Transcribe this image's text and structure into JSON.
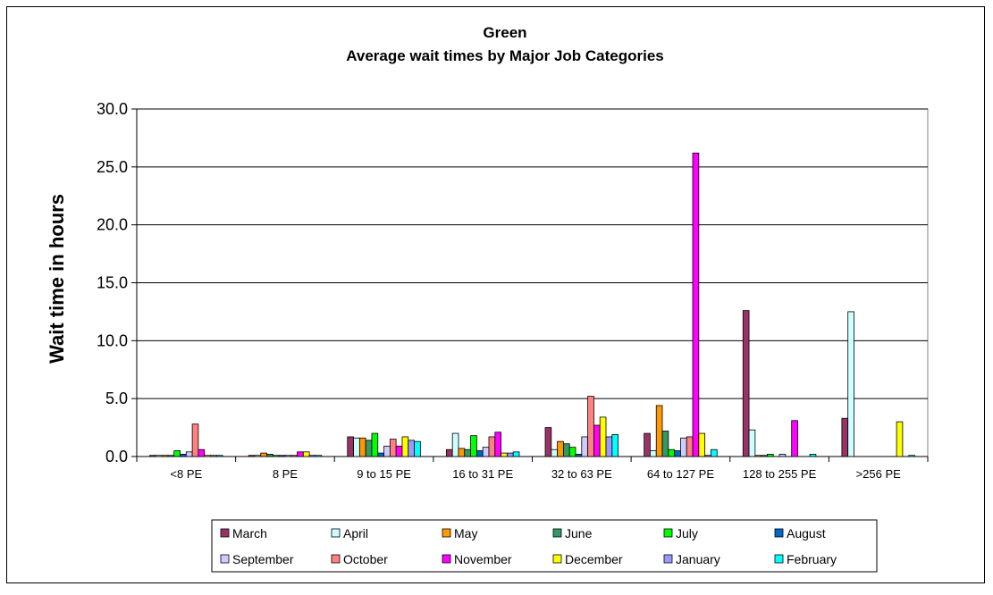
{
  "chart_data": {
    "type": "bar",
    "title": "Green",
    "subtitle": "Average wait times by Major Job Categories",
    "xlabel": "",
    "ylabel": "Wait time in hours",
    "ylim": [
      0,
      30
    ],
    "yticks": [
      "0.0",
      "5.0",
      "10.0",
      "15.0",
      "20.0",
      "25.0",
      "30.0"
    ],
    "ytick_values": [
      0,
      5,
      10,
      15,
      20,
      25,
      30
    ],
    "grid": true,
    "legend_position": "bottom",
    "categories": [
      "<8 PE",
      "8 PE",
      "9 to 15 PE",
      "16 to 31 PE",
      "32 to 63 PE",
      "64 to 127 PE",
      "128 to 255 PE",
      ">256 PE"
    ],
    "series": [
      {
        "name": "March",
        "color": "#993366",
        "values": [
          0.1,
          0.1,
          1.7,
          0.6,
          2.5,
          2.0,
          12.6,
          3.3
        ]
      },
      {
        "name": "April",
        "color": "#CCFFFF",
        "values": [
          0.1,
          0.1,
          1.6,
          2.0,
          0.6,
          0.5,
          2.3,
          12.5
        ]
      },
      {
        "name": "May",
        "color": "#FF9900",
        "values": [
          0.1,
          0.3,
          1.6,
          0.7,
          1.3,
          4.4,
          0.1,
          0.0
        ]
      },
      {
        "name": "June",
        "color": "#339966",
        "values": [
          0.1,
          0.2,
          1.4,
          0.6,
          1.1,
          2.2,
          0.1,
          0.0
        ]
      },
      {
        "name": "July",
        "color": "#00FF00",
        "values": [
          0.5,
          0.1,
          2.0,
          1.8,
          0.8,
          0.6,
          0.2,
          0.0
        ]
      },
      {
        "name": "August",
        "color": "#0066CC",
        "values": [
          0.2,
          0.1,
          0.3,
          0.5,
          0.2,
          0.5,
          0.0,
          0.0
        ]
      },
      {
        "name": "September",
        "color": "#CCCCFF",
        "values": [
          0.4,
          0.1,
          0.9,
          0.8,
          1.7,
          1.6,
          0.2,
          0.0
        ]
      },
      {
        "name": "October",
        "color": "#FF8080",
        "values": [
          2.8,
          0.1,
          1.5,
          1.7,
          5.2,
          1.7,
          0.0,
          0.0
        ]
      },
      {
        "name": "November",
        "color": "#FF00FF",
        "values": [
          0.6,
          0.4,
          0.9,
          2.1,
          2.7,
          26.2,
          3.1,
          0.0
        ]
      },
      {
        "name": "December",
        "color": "#FFFF00",
        "values": [
          0.1,
          0.4,
          1.7,
          0.3,
          3.4,
          2.0,
          0.0,
          3.0
        ]
      },
      {
        "name": "January",
        "color": "#9999FF",
        "values": [
          0.1,
          0.1,
          1.4,
          0.3,
          1.7,
          0.1,
          0.0,
          0.0
        ]
      },
      {
        "name": "February",
        "color": "#00FFFF",
        "values": [
          0.1,
          0.1,
          1.3,
          0.4,
          1.9,
          0.6,
          0.2,
          0.1
        ]
      }
    ]
  }
}
